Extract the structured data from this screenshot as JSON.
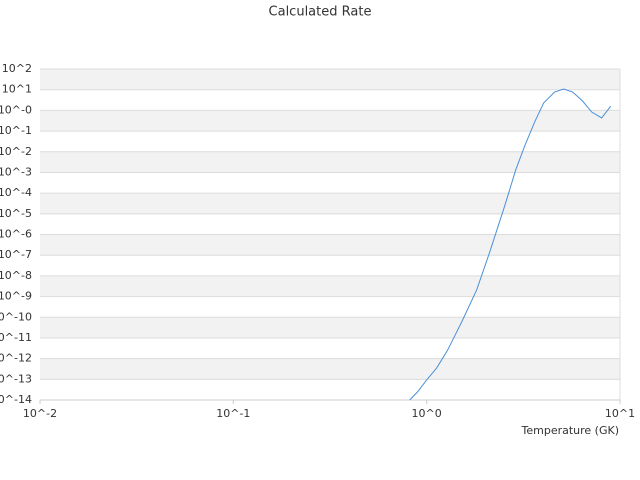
{
  "chart_data": {
    "type": "line",
    "title": "Calculated Rate",
    "x_label": "Temperature (GK)",
    "log_x": true,
    "log_y": true,
    "bands": true,
    "xlim": [
      0.01,
      10
    ],
    "ylim": [
      1e-14,
      100
    ],
    "xticks": [
      {
        "value": 0.01,
        "label": "10^-2"
      },
      {
        "value": 0.1,
        "label": "10^-1"
      },
      {
        "value": 1,
        "label": "10^0"
      },
      {
        "value": 10,
        "label": "10^1"
      }
    ],
    "yticks": [
      {
        "value": 100,
        "label": "10^2"
      },
      {
        "value": 10,
        "label": "10^1"
      },
      {
        "value": 1,
        "label": "10^-0"
      },
      {
        "value": 0.1,
        "label": "10^-1"
      },
      {
        "value": 0.01,
        "label": "10^-2"
      },
      {
        "value": 0.001,
        "label": "10^-3"
      },
      {
        "value": 0.0001,
        "label": "10^-4"
      },
      {
        "value": 1e-05,
        "label": "10^-5"
      },
      {
        "value": 1e-06,
        "label": "10^-6"
      },
      {
        "value": 1e-07,
        "label": "10^-7"
      },
      {
        "value": 1e-08,
        "label": "10^-8"
      },
      {
        "value": 1e-09,
        "label": "10^-9"
      },
      {
        "value": 1e-10,
        "label": "10^-10"
      },
      {
        "value": 1e-11,
        "label": "10^-11"
      },
      {
        "value": 1e-12,
        "label": "10^-12"
      },
      {
        "value": 1e-13,
        "label": "10^-13"
      },
      {
        "value": 1e-14,
        "label": "10^-14"
      }
    ],
    "x": [
      0.817,
      0.898,
      1.0,
      1.126,
      1.284,
      1.517,
      1.814,
      2.118,
      2.533,
      2.886,
      3.214,
      3.62,
      4.03,
      4.59,
      5.11,
      5.69,
      6.41,
      7.14,
      8.04,
      8.95
    ],
    "series": [
      {
        "color": "#4a90d9",
        "values": [
          1e-14,
          2.5e-14,
          9.3e-14,
          3.5e-13,
          2.6e-12,
          5.9e-11,
          2.1e-09,
          1.4e-07,
          2.4e-05,
          0.0013,
          0.019,
          0.275,
          2.3,
          7.7,
          10.8,
          7.7,
          2.8,
          0.83,
          0.43,
          1.6
        ]
      }
    ]
  }
}
